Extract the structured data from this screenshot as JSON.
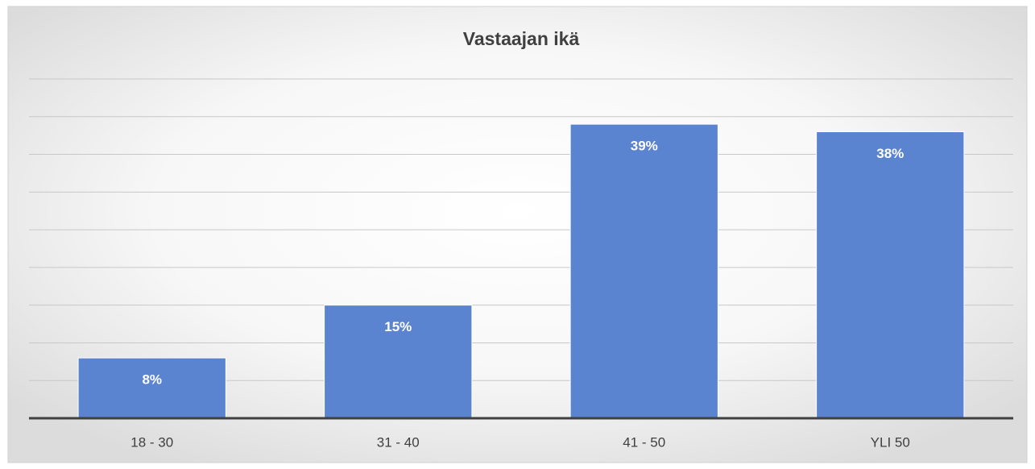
{
  "chart_data": {
    "type": "bar",
    "title": "Vastaajan ikä",
    "categories": [
      "18 - 30",
      "31 - 40",
      "41 - 50",
      "YLI 50"
    ],
    "values": [
      8,
      15,
      39,
      38
    ],
    "value_labels": [
      "8%",
      "15%",
      "39%",
      "38%"
    ],
    "color": "#5b84d0",
    "ylim": [
      0,
      45
    ],
    "yticks": [
      0,
      5,
      10,
      15,
      20,
      25,
      30,
      35,
      40,
      45
    ],
    "grid": true
  }
}
